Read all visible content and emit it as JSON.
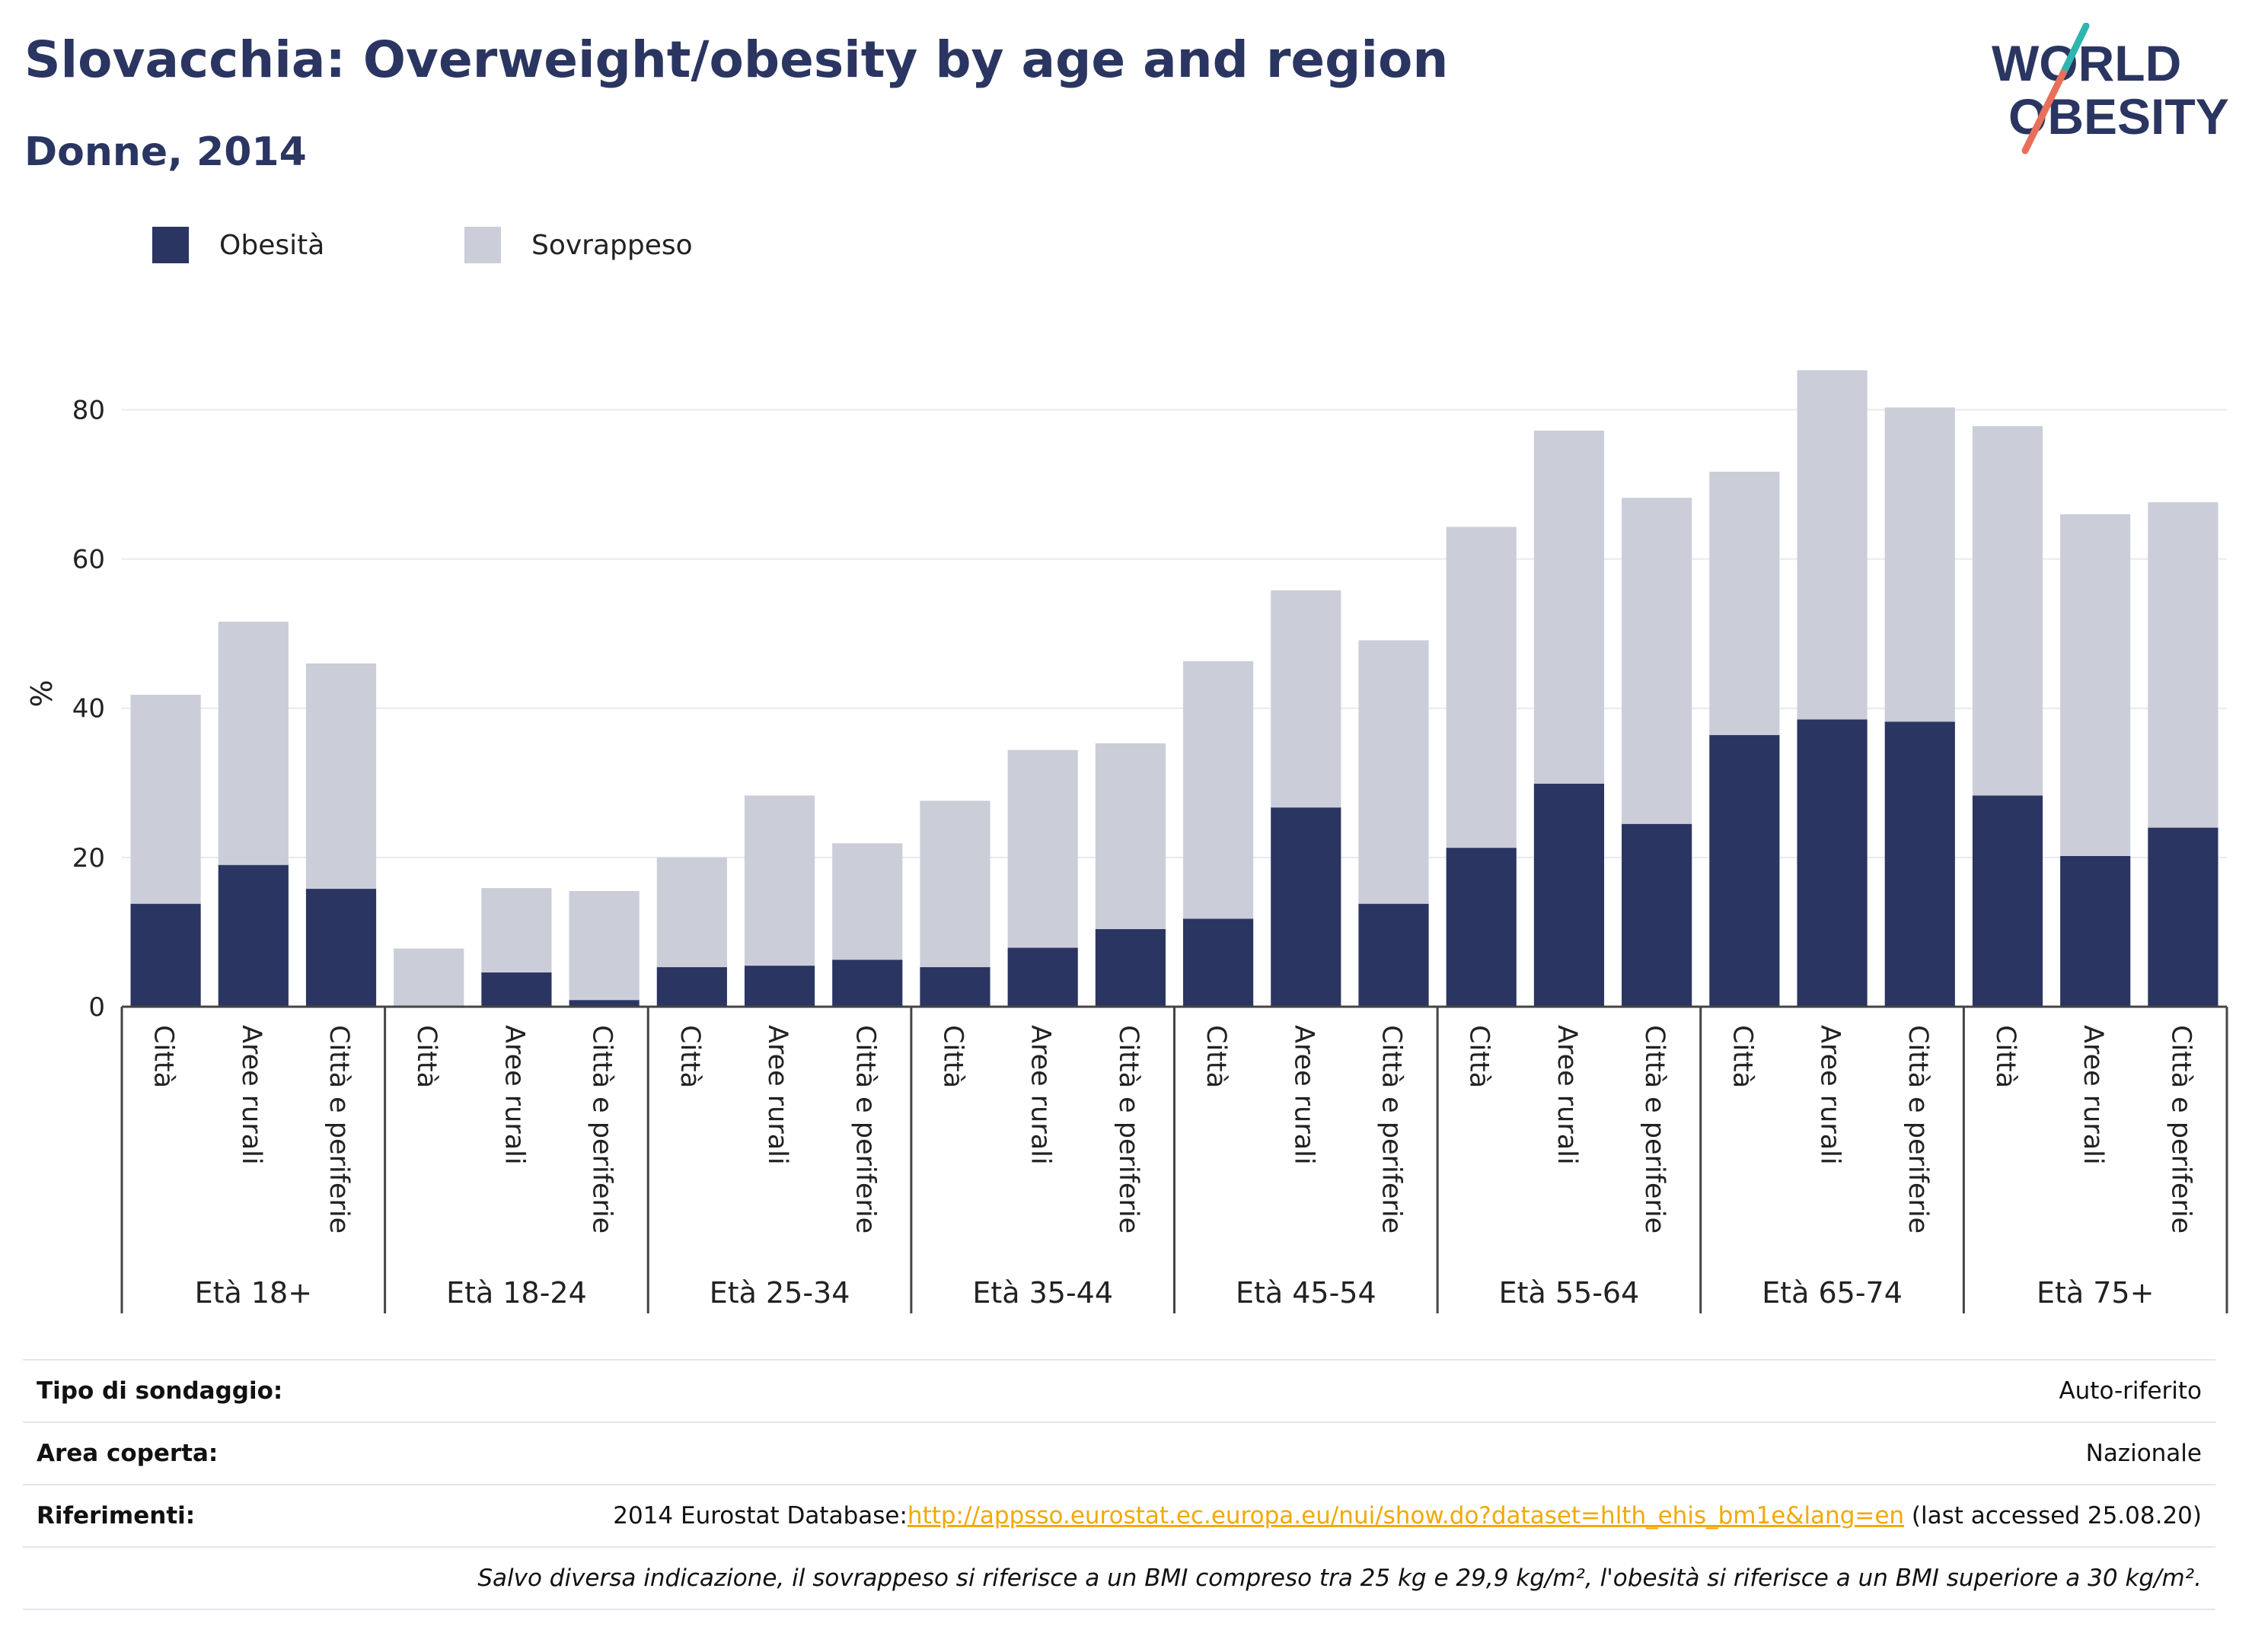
{
  "header": {
    "title": "Slovacchia: Overweight/obesity by age and region",
    "subtitle": "Donne, 2014"
  },
  "logo": {
    "line1": "WORLD",
    "line2": "OBESITY",
    "accent_teal": "#2fb5b0",
    "accent_coral": "#e8705a",
    "text_color": "#2a3561"
  },
  "legend": {
    "items": [
      {
        "label": "Obesità",
        "color": "#2a3561"
      },
      {
        "label": "Sovrappeso",
        "color": "#cbcdd9"
      }
    ]
  },
  "chart_data": {
    "type": "bar",
    "stacked": true,
    "ylabel": "%",
    "ylim": [
      0,
      88
    ],
    "yticks": [
      0,
      20,
      40,
      60,
      80
    ],
    "grid": true,
    "legend_position": "top-left",
    "groups": [
      "Età 18+",
      "Età 18-24",
      "Età 25-34",
      "Età 35-44",
      "Età 45-54",
      "Età 55-64",
      "Età 65-74",
      "Età 75+"
    ],
    "subcategories": [
      "Città",
      "Aree rurali",
      "Città e periferie"
    ],
    "series": [
      {
        "name": "Obesità",
        "color": "#2a3561",
        "values": [
          13.8,
          19.0,
          15.8,
          0.0,
          4.6,
          0.9,
          5.3,
          5.5,
          6.3,
          5.3,
          7.9,
          10.4,
          11.8,
          26.7,
          13.8,
          21.3,
          29.9,
          24.5,
          36.4,
          38.5,
          38.2,
          28.3,
          20.2,
          24.0
        ]
      },
      {
        "name": "Sovrappeso",
        "color": "#cbcdd9",
        "values": [
          28.0,
          32.6,
          30.2,
          7.8,
          11.3,
          14.6,
          14.7,
          22.8,
          15.6,
          22.3,
          26.5,
          24.9,
          34.5,
          29.1,
          35.3,
          43.0,
          47.3,
          43.7,
          35.3,
          46.8,
          42.1,
          49.5,
          45.8,
          43.6
        ]
      }
    ]
  },
  "info_table": {
    "survey_type": {
      "label": "Tipo di sondaggio:",
      "value": "Auto-riferito"
    },
    "coverage": {
      "label": "Area coperta:",
      "value": "Nazionale"
    },
    "references": {
      "label": "Riferimenti:",
      "prefix": "2014 Eurostat Database:",
      "link": "http://appsso.eurostat.ec.europa.eu/nui/show.do?dataset=hlth_ehis_bm1e&lang=en",
      "suffix": " (last accessed 25.08.20)"
    },
    "note": "Salvo diversa indicazione, il sovrappeso si riferisce a un BMI compreso tra 25 kg e 29,9 kg/m², l'obesità si riferisce a un BMI superiore a 30 kg/m²."
  }
}
